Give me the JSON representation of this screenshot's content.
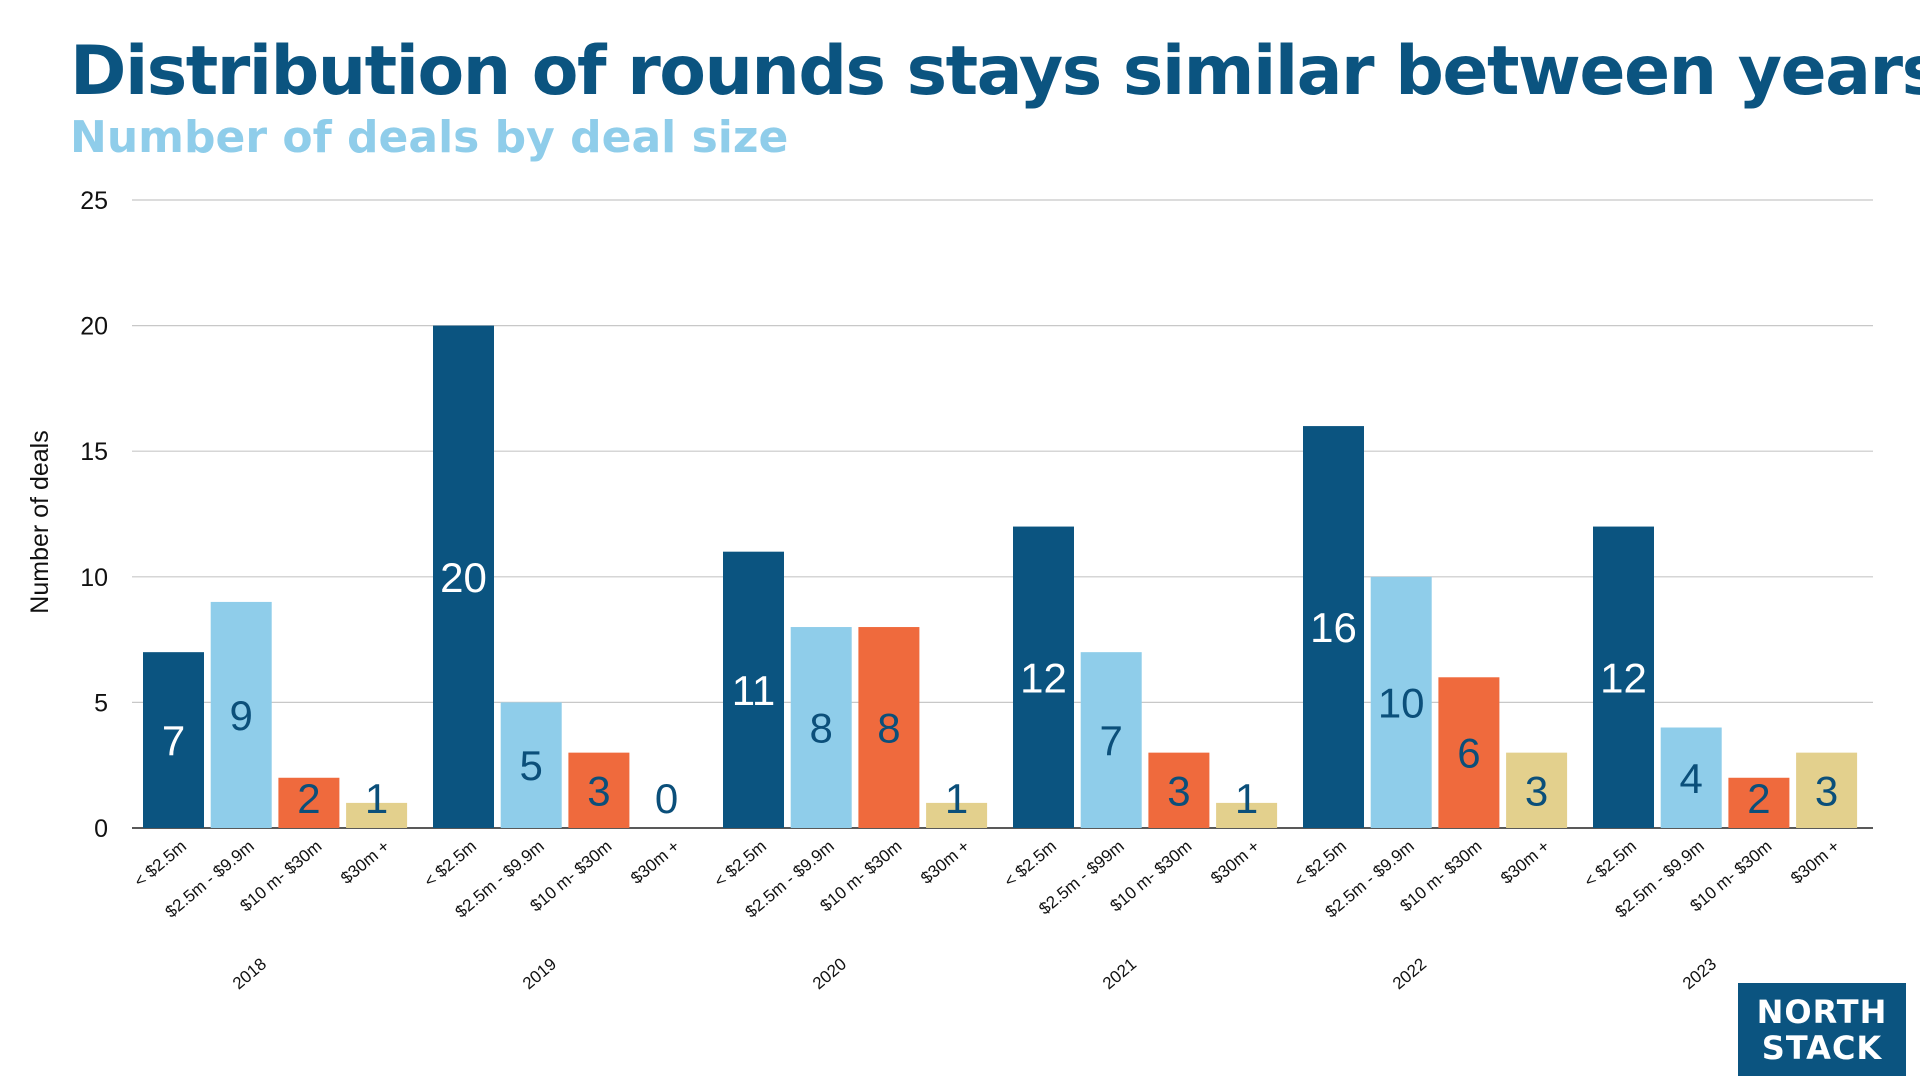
{
  "header": {
    "title": "Distribution of rounds stays similar between years",
    "subtitle": "Number of deals by deal size"
  },
  "logo": {
    "line1": "NORTH",
    "line2": "STACK"
  },
  "colors": {
    "title": "#0b5480",
    "subtitle": "#8fcdea",
    "series": [
      "#0b5480",
      "#8fcdea",
      "#ef6a3d",
      "#e3d08d"
    ],
    "label_on_dark": "#ffffff",
    "label_on_light": "#0b4f7a",
    "grid": "#c8c8c8"
  },
  "chart_data": {
    "type": "bar",
    "title": "Distribution of rounds stays similar between years",
    "subtitle": "Number of deals by deal size",
    "xlabel": "",
    "ylabel": "Number of deals",
    "ylim": [
      0,
      25
    ],
    "yticks": [
      0,
      5,
      10,
      15,
      20,
      25
    ],
    "grid": true,
    "groups": [
      "2018",
      "2019",
      "2020",
      "2021",
      "2022",
      "2023"
    ],
    "categories": [
      [
        "< $2.5m",
        "$2.5m - $9.9m",
        "$10 m- $30m",
        "$30m +"
      ],
      [
        "< $2.5m",
        "$2.5m - $9.9m",
        "$10 m- $30m",
        "$30m +"
      ],
      [
        "< $2.5m",
        "$2.5m - $9.9m",
        "$10 m- $30m",
        "$30m +"
      ],
      [
        "< $2.5m",
        "$2.5m - $99m",
        "$10 m- $30m",
        "$30m +"
      ],
      [
        "< $2.5m",
        "$2.5m - $9.9m",
        "$10 m- $30m",
        "$30m +"
      ],
      [
        "< $2.5m",
        "$2.5m - $9.9m",
        "$10 m- $30m",
        "$30m +"
      ]
    ],
    "values": [
      [
        7,
        9,
        2,
        1
      ],
      [
        20,
        5,
        3,
        0
      ],
      [
        11,
        8,
        8,
        1
      ],
      [
        12,
        7,
        3,
        1
      ],
      [
        16,
        10,
        6,
        3
      ],
      [
        12,
        4,
        2,
        3
      ]
    ]
  }
}
